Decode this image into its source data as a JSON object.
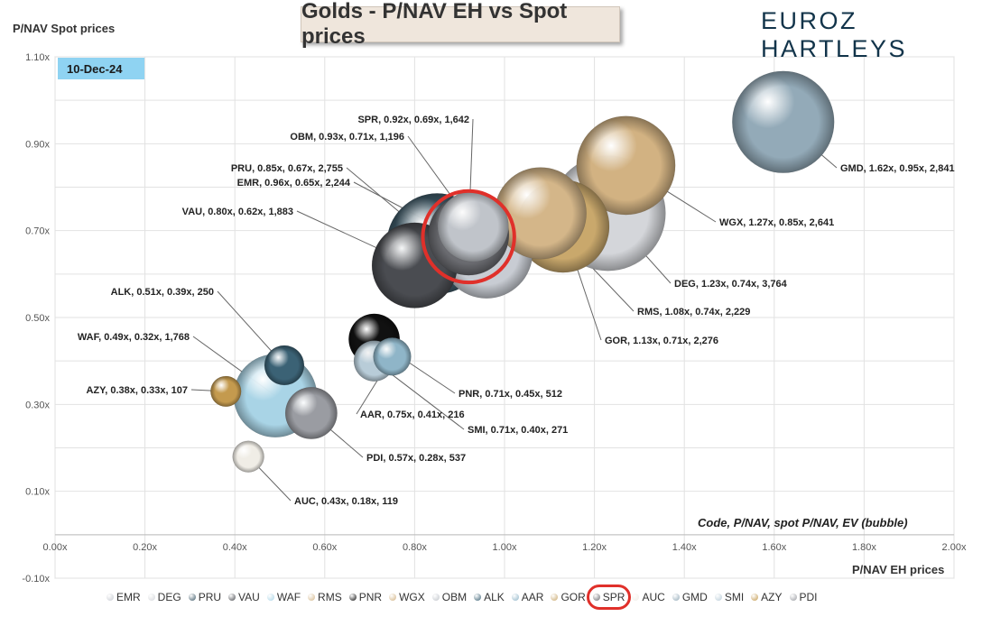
{
  "header": {
    "title": "Golds - P/NAV EH vs Spot prices",
    "logo": "EUROZ HARTLEYS",
    "date_badge": "10-Dec-24",
    "note": "Code, P/NAV, spot P/NAV, EV (bubble)"
  },
  "chart_data": {
    "type": "scatter",
    "subtype": "bubble",
    "title": "Golds - P/NAV EH vs Spot prices",
    "xlabel": "P/NAV EH prices",
    "ylabel": "P/NAV Spot prices",
    "xlim": [
      0,
      2.0
    ],
    "ylim": [
      -0.1,
      1.1
    ],
    "x_ticks": [
      "0.00x",
      "0.20x",
      "0.40x",
      "0.60x",
      "0.80x",
      "1.00x",
      "1.20x",
      "1.40x",
      "1.60x",
      "1.80x",
      "2.00x"
    ],
    "y_ticks": [
      "-0.10x",
      "0.10x",
      "0.30x",
      "0.50x",
      "0.70x",
      "0.90x",
      "1.10x"
    ],
    "grid": true,
    "legend_position": "bottom",
    "bubble_size_meaning": "EV",
    "points": [
      {
        "code": "EMR",
        "x": 0.96,
        "y": 0.65,
        "size": 2244,
        "label": "EMR, 0.96x, 0.65x, 2,244",
        "color": "#c8ccd3"
      },
      {
        "code": "DEG",
        "x": 1.23,
        "y": 0.74,
        "size": 3764,
        "label": "DEG, 1.23x, 0.74x, 3,764",
        "color": "#d4d6da"
      },
      {
        "code": "PRU",
        "x": 0.85,
        "y": 0.67,
        "size": 2755,
        "label": "PRU, 0.85x, 0.67x, 2,755",
        "color": "#3e5a68"
      },
      {
        "code": "VAU",
        "x": 0.8,
        "y": 0.62,
        "size": 1883,
        "label": "VAU, 0.80x, 0.62x, 1,883",
        "color": "#4a4c51"
      },
      {
        "code": "WAF",
        "x": 0.49,
        "y": 0.32,
        "size": 1768,
        "label": "WAF, 0.49x, 0.32x, 1,768",
        "color": "#a9d4e6"
      },
      {
        "code": "RMS",
        "x": 1.08,
        "y": 0.74,
        "size": 2229,
        "label": "RMS, 1.08x, 0.74x, 2,229",
        "color": "#d4b689"
      },
      {
        "code": "PNR",
        "x": 0.71,
        "y": 0.45,
        "size": 512,
        "label": "PNR, 0.71x, 0.45x, 512",
        "color": "#111111"
      },
      {
        "code": "WGX",
        "x": 1.27,
        "y": 0.85,
        "size": 2641,
        "label": "WGX, 1.27x, 0.85x, 2,641",
        "color": "#d2b282"
      },
      {
        "code": "OBM",
        "x": 0.93,
        "y": 0.71,
        "size": 1196,
        "label": "OBM, 0.93x, 0.71x, 1,196",
        "color": "#c0c4ca"
      },
      {
        "code": "ALK",
        "x": 0.51,
        "y": 0.39,
        "size": 250,
        "label": "ALK, 0.51x, 0.39x, 250",
        "color": "#3b6275"
      },
      {
        "code": "AAR",
        "x": 0.75,
        "y": 0.41,
        "size": 216,
        "label": "AAR, 0.75x, 0.41x, 216",
        "color": "#8fb5c8"
      },
      {
        "code": "GOR",
        "x": 1.13,
        "y": 0.71,
        "size": 2276,
        "label": "GOR, 1.13x, 0.71x, 2,276",
        "color": "#c9a86c"
      },
      {
        "code": "SPR",
        "x": 0.92,
        "y": 0.69,
        "size": 1642,
        "label": "SPR, 0.92x, 0.69x, 1,642",
        "color": "#6a6b70"
      },
      {
        "code": "AUC",
        "x": 0.43,
        "y": 0.18,
        "size": 119,
        "label": "AUC, 0.43x, 0.18x, 119",
        "color": "#f0ede6"
      },
      {
        "code": "GMD",
        "x": 1.62,
        "y": 0.95,
        "size": 2841,
        "label": "GMD, 1.62x, 0.95x, 2,841",
        "color": "#93aab8"
      },
      {
        "code": "SMI",
        "x": 0.71,
        "y": 0.4,
        "size": 271,
        "label": "SMI, 0.71x, 0.40x, 271",
        "color": "#b8ccd8"
      },
      {
        "code": "AZY",
        "x": 0.38,
        "y": 0.33,
        "size": 107,
        "label": "AZY, 0.38x, 0.33x, 107",
        "color": "#c49a4e"
      },
      {
        "code": "PDI",
        "x": 0.57,
        "y": 0.28,
        "size": 537,
        "label": "PDI, 0.57x, 0.28x, 537",
        "color": "#9a9ca2"
      }
    ],
    "highlighted": [
      "SPR"
    ]
  }
}
